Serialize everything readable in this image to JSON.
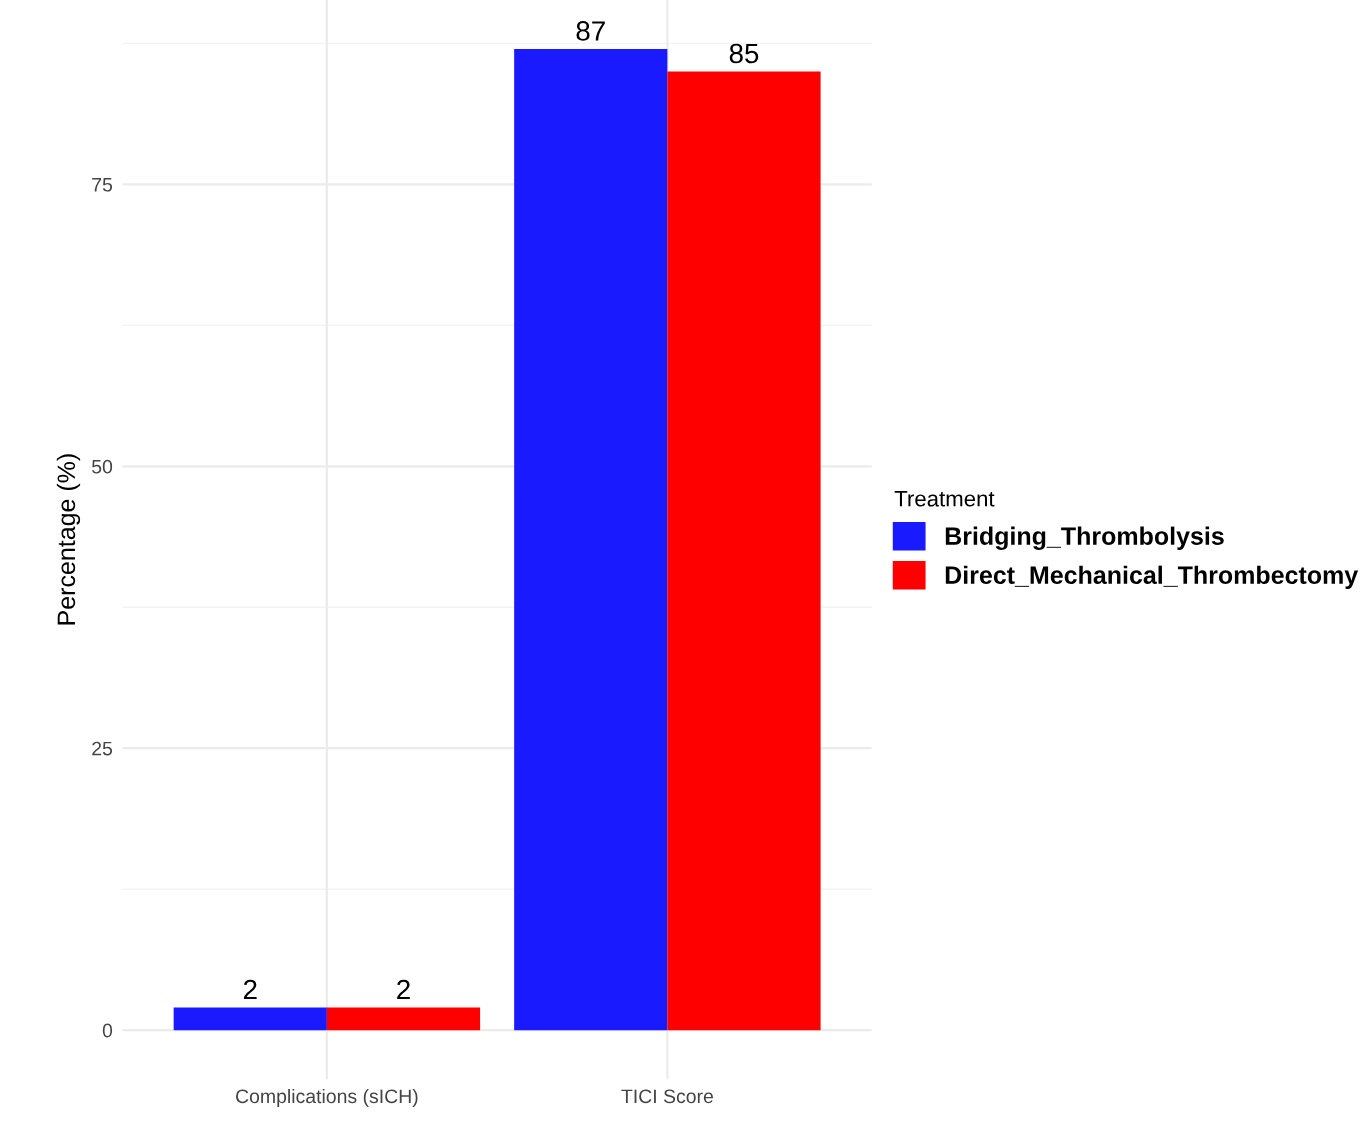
{
  "chart_data": {
    "type": "bar",
    "ylabel": "Percentage (%)",
    "legend_title": "Treatment",
    "categories": [
      "Complications (sICH)",
      "TICI Score"
    ],
    "series": [
      {
        "name": "Bridging_Thrombolysis",
        "color": "#1a1aff",
        "values": [
          2,
          87
        ]
      },
      {
        "name": "Direct_Mechanical_Thrombectomy",
        "color": "#ff0000",
        "values": [
          2,
          85
        ]
      }
    ],
    "ylim": [
      -4.35,
      91.35
    ],
    "yticks": [
      0,
      25,
      50,
      75
    ],
    "grid": true,
    "legend": "right",
    "data_labels": true
  }
}
